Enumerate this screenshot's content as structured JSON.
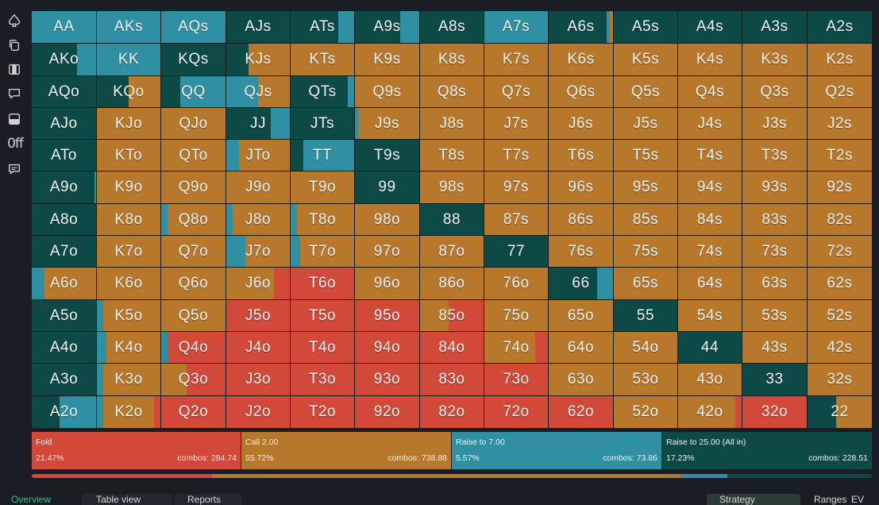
{
  "colors": {
    "fold": "#d2493a",
    "call": "#b8782c",
    "raise": "#2f8fa3",
    "allin": "#0e4a45"
  },
  "sidebar": {
    "items": [
      {
        "name": "spade-icon"
      },
      {
        "name": "copy-icon"
      },
      {
        "name": "cards-icon"
      },
      {
        "name": "comment-icon"
      },
      {
        "name": "panel-icon"
      },
      {
        "name": "off-toggle",
        "text": "0ff"
      },
      {
        "name": "chat-icon"
      }
    ]
  },
  "grid": {
    "rows": [
      [
        "AA",
        "AKs",
        "AQs",
        "AJs",
        "ATs",
        "A9s",
        "A8s",
        "A7s",
        "A6s",
        "A5s",
        "A4s",
        "A3s",
        "A2s"
      ],
      [
        "AKo",
        "KK",
        "KQs",
        "KJs",
        "KTs",
        "K9s",
        "K8s",
        "K7s",
        "K6s",
        "K5s",
        "K4s",
        "K3s",
        "K2s"
      ],
      [
        "AQo",
        "KQo",
        "QQ",
        "QJs",
        "QTs",
        "Q9s",
        "Q8s",
        "Q7s",
        "Q6s",
        "Q5s",
        "Q4s",
        "Q3s",
        "Q2s"
      ],
      [
        "AJo",
        "KJo",
        "QJo",
        "JJ",
        "JTs",
        "J9s",
        "J8s",
        "J7s",
        "J6s",
        "J5s",
        "J4s",
        "J3s",
        "J2s"
      ],
      [
        "ATo",
        "KTo",
        "QTo",
        "JTo",
        "TT",
        "T9s",
        "T8s",
        "T7s",
        "T6s",
        "T5s",
        "T4s",
        "T3s",
        "T2s"
      ],
      [
        "A9o",
        "K9o",
        "Q9o",
        "J9o",
        "T9o",
        "99",
        "98s",
        "97s",
        "96s",
        "95s",
        "94s",
        "93s",
        "92s"
      ],
      [
        "A8o",
        "K8o",
        "Q8o",
        "J8o",
        "T8o",
        "98o",
        "88",
        "87s",
        "86s",
        "85s",
        "84s",
        "83s",
        "82s"
      ],
      [
        "A7o",
        "K7o",
        "Q7o",
        "J7o",
        "T7o",
        "97o",
        "87o",
        "77",
        "76s",
        "75s",
        "74s",
        "73s",
        "72s"
      ],
      [
        "A6o",
        "K6o",
        "Q6o",
        "J6o",
        "T6o",
        "96o",
        "86o",
        "76o",
        "66",
        "65s",
        "64s",
        "63s",
        "62s"
      ],
      [
        "A5o",
        "K5o",
        "Q5o",
        "J5o",
        "T5o",
        "95o",
        "85o",
        "75o",
        "65o",
        "55",
        "54s",
        "53s",
        "52s"
      ],
      [
        "A4o",
        "K4o",
        "Q4o",
        "J4o",
        "T4o",
        "94o",
        "84o",
        "74o",
        "64o",
        "54o",
        "44",
        "43s",
        "42s"
      ],
      [
        "A3o",
        "K3o",
        "Q3o",
        "J3o",
        "T3o",
        "93o",
        "83o",
        "73o",
        "63o",
        "53o",
        "43o",
        "33",
        "32s"
      ],
      [
        "A2o",
        "K2o",
        "Q2o",
        "J2o",
        "T2o",
        "92o",
        "82o",
        "72o",
        "62o",
        "52o",
        "42o",
        "32o",
        "22"
      ]
    ],
    "freqs": [
      [
        [
          0,
          0,
          1,
          0
        ],
        [
          0,
          0,
          1,
          0
        ],
        [
          0,
          0,
          1,
          0
        ],
        [
          0,
          0,
          0,
          1
        ],
        [
          0,
          0,
          0.25,
          0.75
        ],
        [
          0,
          0,
          0.3,
          0.7
        ],
        [
          0,
          0,
          0,
          1
        ],
        [
          0,
          0,
          1,
          0
        ],
        [
          0,
          0.05,
          0.05,
          0.9
        ],
        [
          0,
          0,
          0,
          1
        ],
        [
          0,
          0,
          0,
          1
        ],
        [
          0,
          0,
          0,
          1
        ],
        [
          0,
          0,
          0,
          1
        ]
      ],
      [
        [
          0,
          0,
          0.3,
          0.7
        ],
        [
          0,
          0,
          1,
          0
        ],
        [
          0,
          0,
          0,
          1
        ],
        [
          0,
          0.65,
          0,
          0.35
        ],
        [
          0,
          1,
          0,
          0
        ],
        [
          0,
          1,
          0,
          0
        ],
        [
          0,
          1,
          0,
          0
        ],
        [
          0,
          1,
          0,
          0
        ],
        [
          0,
          1,
          0,
          0
        ],
        [
          0,
          1,
          0,
          0
        ],
        [
          0,
          1,
          0,
          0
        ],
        [
          0,
          1,
          0,
          0
        ],
        [
          0,
          1,
          0,
          0
        ]
      ],
      [
        [
          0,
          0,
          0,
          1
        ],
        [
          0,
          0.5,
          0,
          0.5
        ],
        [
          0,
          0,
          0.7,
          0.3
        ],
        [
          0,
          0.5,
          0.5,
          0
        ],
        [
          0,
          0,
          0.1,
          0.9
        ],
        [
          0,
          1,
          0,
          0
        ],
        [
          0,
          1,
          0,
          0
        ],
        [
          0,
          1,
          0,
          0
        ],
        [
          0,
          1,
          0,
          0
        ],
        [
          0,
          1,
          0,
          0
        ],
        [
          0,
          1,
          0,
          0
        ],
        [
          0,
          1,
          0,
          0
        ],
        [
          0,
          1,
          0,
          0
        ]
      ],
      [
        [
          0,
          0,
          0,
          1
        ],
        [
          0,
          1,
          0,
          0
        ],
        [
          0,
          1,
          0,
          0
        ],
        [
          0,
          0,
          0.3,
          0.7
        ],
        [
          0,
          0,
          0,
          1
        ],
        [
          0,
          0.95,
          0.05,
          0
        ],
        [
          0,
          1,
          0,
          0
        ],
        [
          0,
          1,
          0,
          0
        ],
        [
          0,
          1,
          0,
          0
        ],
        [
          0,
          1,
          0,
          0
        ],
        [
          0,
          1,
          0,
          0
        ],
        [
          0,
          1,
          0,
          0
        ],
        [
          0,
          1,
          0,
          0
        ]
      ],
      [
        [
          0,
          0,
          0,
          1
        ],
        [
          0,
          1,
          0,
          0
        ],
        [
          0,
          1,
          0,
          0
        ],
        [
          0,
          0.8,
          0.2,
          0
        ],
        [
          0,
          0,
          0.8,
          0.2
        ],
        [
          0,
          0,
          0,
          1
        ],
        [
          0,
          1,
          0,
          0
        ],
        [
          0,
          1,
          0,
          0
        ],
        [
          0,
          1,
          0,
          0
        ],
        [
          0,
          1,
          0,
          0
        ],
        [
          0,
          1,
          0,
          0
        ],
        [
          0,
          1,
          0,
          0
        ],
        [
          0,
          1,
          0,
          0
        ]
      ],
      [
        [
          0,
          0,
          0.03,
          0.97
        ],
        [
          0,
          1,
          0,
          0
        ],
        [
          0,
          1,
          0,
          0
        ],
        [
          0,
          1,
          0,
          0
        ],
        [
          0,
          1,
          0,
          0
        ],
        [
          0,
          0,
          0,
          1
        ],
        [
          0,
          1,
          0,
          0
        ],
        [
          0,
          1,
          0,
          0
        ],
        [
          0,
          1,
          0,
          0
        ],
        [
          0,
          1,
          0,
          0
        ],
        [
          0,
          1,
          0,
          0
        ],
        [
          0,
          1,
          0,
          0
        ],
        [
          0,
          1,
          0,
          0
        ]
      ],
      [
        [
          0,
          0,
          0,
          1
        ],
        [
          0,
          1,
          0,
          0
        ],
        [
          0,
          0.9,
          0.1,
          0
        ],
        [
          0,
          0.9,
          0.1,
          0
        ],
        [
          0,
          0.9,
          0.1,
          0
        ],
        [
          0,
          1,
          0,
          0
        ],
        [
          0,
          0,
          0,
          1
        ],
        [
          0,
          1,
          0,
          0
        ],
        [
          0,
          1,
          0,
          0
        ],
        [
          0,
          1,
          0,
          0
        ],
        [
          0,
          1,
          0,
          0
        ],
        [
          0,
          1,
          0,
          0
        ],
        [
          0,
          1,
          0,
          0
        ]
      ],
      [
        [
          0,
          0,
          0,
          1
        ],
        [
          0,
          1,
          0,
          0
        ],
        [
          0,
          1,
          0,
          0
        ],
        [
          0,
          0.7,
          0.3,
          0
        ],
        [
          0,
          0.85,
          0.15,
          0
        ],
        [
          0,
          1,
          0,
          0
        ],
        [
          0,
          1,
          0,
          0
        ],
        [
          0,
          0,
          0,
          1
        ],
        [
          0,
          1,
          0,
          0
        ],
        [
          0,
          1,
          0,
          0
        ],
        [
          0,
          1,
          0,
          0
        ],
        [
          0,
          1,
          0,
          0
        ],
        [
          0,
          1,
          0,
          0
        ]
      ],
      [
        [
          0,
          0.8,
          0.2,
          0
        ],
        [
          0,
          1,
          0,
          0
        ],
        [
          0,
          1,
          0,
          0
        ],
        [
          0.25,
          0.75,
          0,
          0
        ],
        [
          1,
          0,
          0,
          0
        ],
        [
          0,
          1,
          0,
          0
        ],
        [
          0,
          1,
          0,
          0
        ],
        [
          0,
          1,
          0,
          0
        ],
        [
          0,
          0,
          0.25,
          0.75
        ],
        [
          0,
          1,
          0,
          0
        ],
        [
          0,
          1,
          0,
          0
        ],
        [
          0,
          1,
          0,
          0
        ],
        [
          0,
          1,
          0,
          0
        ]
      ],
      [
        [
          0,
          0,
          0,
          1
        ],
        [
          0,
          0.9,
          0.1,
          0
        ],
        [
          0,
          1,
          0,
          0
        ],
        [
          1,
          0,
          0,
          0
        ],
        [
          1,
          0,
          0,
          0
        ],
        [
          1,
          0,
          0,
          0
        ],
        [
          0.55,
          0.45,
          0,
          0
        ],
        [
          0,
          1,
          0,
          0
        ],
        [
          0,
          1,
          0,
          0
        ],
        [
          0,
          0,
          0,
          1
        ],
        [
          0,
          1,
          0,
          0
        ],
        [
          0,
          1,
          0,
          0
        ],
        [
          0,
          1,
          0,
          0
        ]
      ],
      [
        [
          0,
          0,
          0,
          1
        ],
        [
          0,
          0.85,
          0.15,
          0
        ],
        [
          0.9,
          0,
          0.1,
          0
        ],
        [
          1,
          0,
          0,
          0
        ],
        [
          1,
          0,
          0,
          0
        ],
        [
          1,
          0,
          0,
          0
        ],
        [
          1,
          0,
          0,
          0
        ],
        [
          0.2,
          0.8,
          0,
          0
        ],
        [
          0,
          1,
          0,
          0
        ],
        [
          0,
          1,
          0,
          0
        ],
        [
          0,
          0,
          0,
          1
        ],
        [
          0,
          1,
          0,
          0
        ],
        [
          0,
          1,
          0,
          0
        ]
      ],
      [
        [
          0,
          0,
          0,
          1
        ],
        [
          0,
          0.9,
          0.1,
          0
        ],
        [
          0.6,
          0.4,
          0,
          0
        ],
        [
          1,
          0,
          0,
          0
        ],
        [
          1,
          0,
          0,
          0
        ],
        [
          1,
          0,
          0,
          0
        ],
        [
          1,
          0,
          0,
          0
        ],
        [
          1,
          0,
          0,
          0
        ],
        [
          0,
          1,
          0,
          0
        ],
        [
          0,
          1,
          0,
          0
        ],
        [
          0,
          1,
          0,
          0
        ],
        [
          0,
          0,
          0,
          1
        ],
        [
          0,
          1,
          0,
          0
        ]
      ],
      [
        [
          0,
          0,
          0.57,
          0.43
        ],
        [
          0.1,
          0.8,
          0.1,
          0
        ],
        [
          1,
          0,
          0,
          0
        ],
        [
          1,
          0,
          0,
          0
        ],
        [
          1,
          0,
          0,
          0
        ],
        [
          1,
          0,
          0,
          0
        ],
        [
          1,
          0,
          0,
          0
        ],
        [
          1,
          0,
          0,
          0
        ],
        [
          1,
          0,
          0,
          0
        ],
        [
          0,
          1,
          0,
          0
        ],
        [
          0.1,
          0.9,
          0,
          0
        ],
        [
          1,
          0,
          0,
          0
        ],
        [
          0,
          0.55,
          0,
          0.45
        ]
      ]
    ]
  },
  "actions": [
    {
      "label": "Fold",
      "pct": "21.47%",
      "combos": "combos: 284.74",
      "share": 0.2147
    },
    {
      "label": "Call 2.00",
      "pct": "55.72%",
      "combos": "combos: 738.88",
      "share": 0.5572
    },
    {
      "label": "Raise to 7.00",
      "pct": "5.57%",
      "combos": "combos: 73.86",
      "share": 0.0557
    },
    {
      "label": "Raise to 25.00 (All in)",
      "pct": "17.23%",
      "combos": "combos: 228.51",
      "share": 0.1723
    }
  ],
  "bottom_tabs": [
    {
      "label": "Overview"
    },
    {
      "label": "Table view"
    },
    {
      "label": "Reports"
    },
    {
      "label": "Strategy"
    },
    {
      "label": "Ranges"
    },
    {
      "label": "EV"
    }
  ]
}
